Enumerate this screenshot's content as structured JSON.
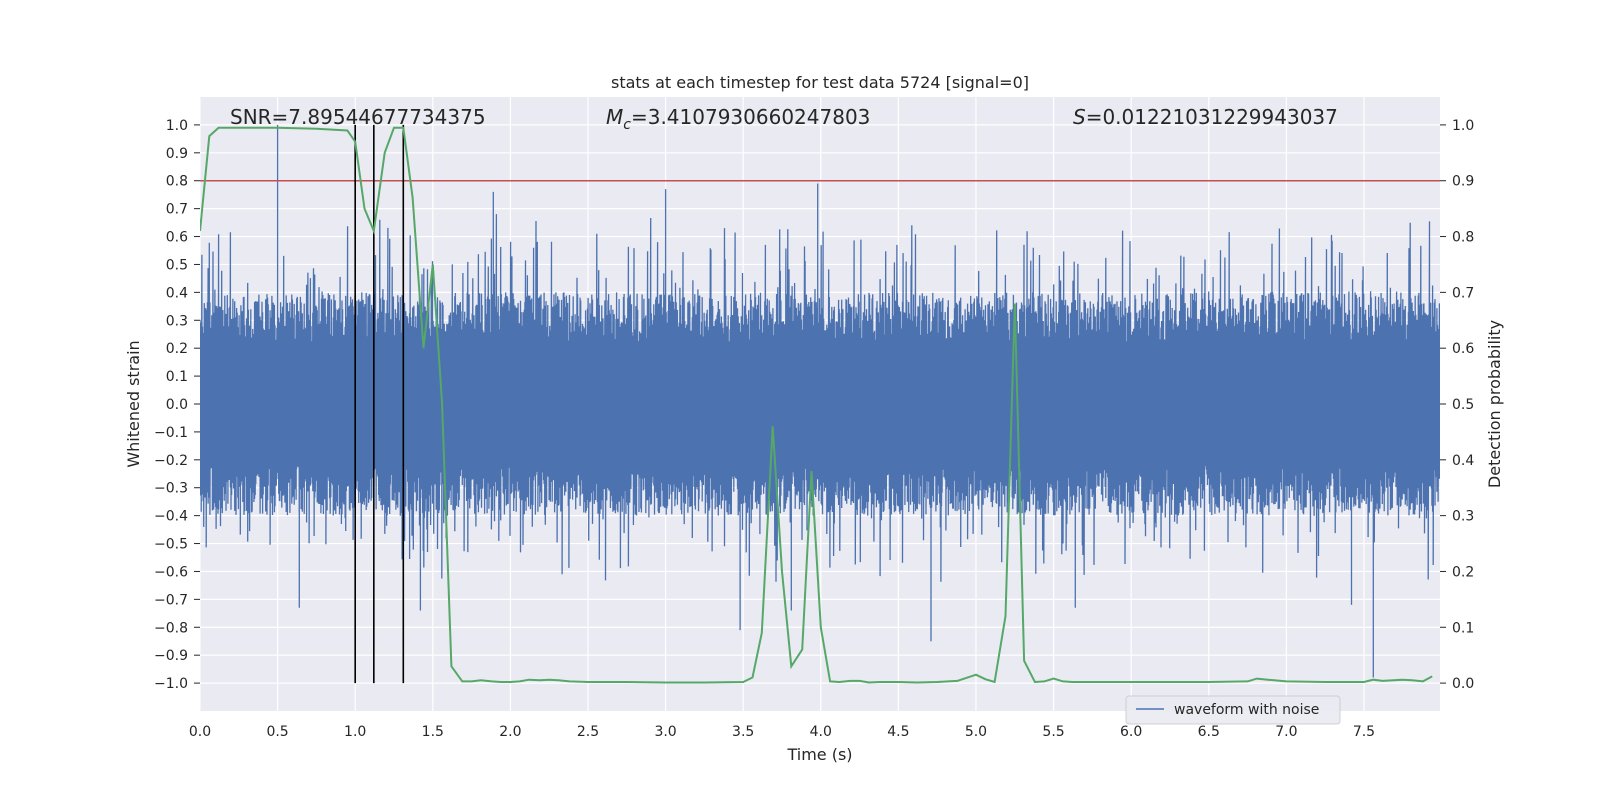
{
  "chart_data": {
    "type": "line",
    "title": "stats at each timestep for test data 5724 [signal=0]",
    "xlabel": "Time (s)",
    "ylabel": "Whitened strain",
    "ylabel_right": "Detection probability",
    "xlim": [
      0.0,
      7.99
    ],
    "ylim": [
      -1.1,
      1.1
    ],
    "ylim_right": [
      -0.05,
      1.05
    ],
    "x_ticks": [
      "0.0",
      "0.5",
      "1.0",
      "1.5",
      "2.0",
      "2.5",
      "3.0",
      "3.5",
      "4.0",
      "4.5",
      "5.0",
      "5.5",
      "6.0",
      "6.5",
      "7.0",
      "7.5"
    ],
    "y_ticks": [
      "1.0",
      "0.9",
      "0.8",
      "0.7",
      "0.6",
      "0.5",
      "0.4",
      "0.3",
      "0.2",
      "0.1",
      "0.0",
      "−0.1",
      "−0.2",
      "−0.3",
      "−0.4",
      "−0.5",
      "−0.6",
      "−0.7",
      "−0.8",
      "−0.9",
      "−1.0"
    ],
    "y_ticks_right": [
      "1.0",
      "0.9",
      "0.8",
      "0.7",
      "0.6",
      "0.5",
      "0.4",
      "0.3",
      "0.2",
      "0.1",
      "0.0"
    ],
    "annotations": {
      "snr": "SNR=7.89544677734375",
      "mc_symbol": "M",
      "mc_sub": "c",
      "mc_value": "=3.4107930660247803",
      "s_symbol": "S",
      "s_value": "=0.01221031229943037"
    },
    "threshold": {
      "axis": "right",
      "value": 0.9,
      "color": "#c44e52"
    },
    "vertical_markers": {
      "x": [
        1.0,
        1.12,
        1.31
      ],
      "ymin": -1.0,
      "ymax": 1.0,
      "color": "#000000"
    },
    "legend": {
      "label": "waveform with noise",
      "location": "lower-right"
    },
    "series": [
      {
        "name": "waveform with noise",
        "axis": "left",
        "color": "#4c72b0",
        "generator": {
          "kind": "noise",
          "x_start": 0.0,
          "x_end": 7.99,
          "count": 2000,
          "band_abs": 0.4,
          "seed": 5724
        },
        "spikes": [
          {
            "x": 0.5,
            "y": 1.0
          },
          {
            "x": 1.42,
            "y": -0.74
          },
          {
            "x": 3.48,
            "y": -0.81
          },
          {
            "x": 3.98,
            "y": 0.79
          },
          {
            "x": 4.71,
            "y": -0.85
          },
          {
            "x": 7.56,
            "y": -0.98
          },
          {
            "x": 0.64,
            "y": -0.73
          },
          {
            "x": 1.89,
            "y": 0.76
          },
          {
            "x": 3.0,
            "y": 0.77
          },
          {
            "x": 3.81,
            "y": -0.74
          },
          {
            "x": 5.64,
            "y": -0.73
          },
          {
            "x": 7.42,
            "y": -0.72
          }
        ]
      },
      {
        "name": "detection probability",
        "axis": "right",
        "color": "#55a868",
        "x": [
          0.0,
          0.06,
          0.12,
          0.25,
          0.5,
          0.75,
          0.95,
          1.0,
          1.06,
          1.12,
          1.19,
          1.25,
          1.31,
          1.37,
          1.44,
          1.5,
          1.56,
          1.62,
          1.69,
          1.75,
          1.81,
          1.88,
          1.94,
          2.0,
          2.06,
          2.12,
          2.19,
          2.25,
          2.31,
          2.38,
          2.5,
          2.62,
          2.75,
          3.0,
          3.25,
          3.5,
          3.56,
          3.62,
          3.69,
          3.75,
          3.81,
          3.88,
          3.94,
          4.0,
          4.06,
          4.12,
          4.19,
          4.25,
          4.31,
          4.38,
          4.5,
          4.62,
          4.75,
          4.88,
          5.0,
          5.06,
          5.12,
          5.19,
          5.25,
          5.31,
          5.38,
          5.44,
          5.5,
          5.56,
          5.62,
          5.75,
          6.0,
          6.25,
          6.5,
          6.75,
          6.81,
          6.88,
          7.0,
          7.25,
          7.5,
          7.56,
          7.62,
          7.75,
          7.81,
          7.88,
          7.94
        ],
        "y": [
          0.81,
          0.98,
          0.995,
          0.995,
          0.995,
          0.993,
          0.99,
          0.97,
          0.85,
          0.81,
          0.95,
          0.995,
          0.995,
          0.87,
          0.6,
          0.75,
          0.5,
          0.03,
          0.003,
          0.003,
          0.005,
          0.003,
          0.002,
          0.002,
          0.003,
          0.006,
          0.005,
          0.006,
          0.005,
          0.003,
          0.002,
          0.002,
          0.002,
          0.001,
          0.001,
          0.002,
          0.01,
          0.09,
          0.46,
          0.2,
          0.03,
          0.06,
          0.38,
          0.1,
          0.003,
          0.002,
          0.004,
          0.004,
          0.001,
          0.002,
          0.002,
          0.001,
          0.002,
          0.004,
          0.015,
          0.007,
          0.002,
          0.12,
          0.68,
          0.04,
          0.002,
          0.003,
          0.008,
          0.003,
          0.002,
          0.002,
          0.002,
          0.002,
          0.002,
          0.003,
          0.008,
          0.006,
          0.003,
          0.002,
          0.002,
          0.006,
          0.004,
          0.006,
          0.005,
          0.003,
          0.012
        ]
      }
    ]
  }
}
